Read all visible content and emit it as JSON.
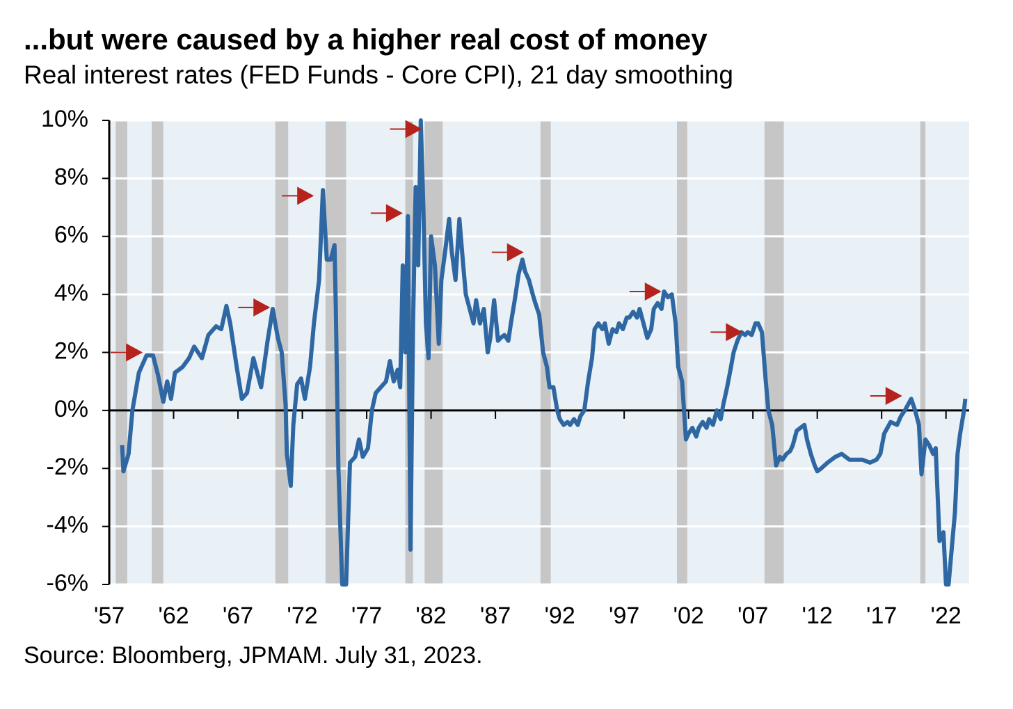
{
  "chart_data": {
    "type": "line",
    "title": "...but were caused by a higher real cost of money",
    "subtitle": "Real interest rates (FED Funds - Core CPI), 21 day smoothing",
    "source": "Source: Bloomberg, JPMAM. July 31, 2023.",
    "xlim": [
      1957,
      2023.8
    ],
    "ylim": [
      -6,
      10
    ],
    "yticks": [
      {
        "value": 10,
        "label": "10%"
      },
      {
        "value": 8,
        "label": "8%"
      },
      {
        "value": 6,
        "label": "6%"
      },
      {
        "value": 4,
        "label": "4%"
      },
      {
        "value": 2,
        "label": "2%"
      },
      {
        "value": 0,
        "label": "0%"
      },
      {
        "value": -2,
        "label": "-2%"
      },
      {
        "value": -4,
        "label": "-4%"
      },
      {
        "value": -6,
        "label": "-6%"
      }
    ],
    "xticks": [
      {
        "value": 1957,
        "label": "'57"
      },
      {
        "value": 1962,
        "label": "'62"
      },
      {
        "value": 1967,
        "label": "'67"
      },
      {
        "value": 1972,
        "label": "'72"
      },
      {
        "value": 1977,
        "label": "'77"
      },
      {
        "value": 1982,
        "label": "'82"
      },
      {
        "value": 1987,
        "label": "'87"
      },
      {
        "value": 1992,
        "label": "'92"
      },
      {
        "value": 1997,
        "label": "'97"
      },
      {
        "value": 2002,
        "label": "'02"
      },
      {
        "value": 2007,
        "label": "'07"
      },
      {
        "value": 2012,
        "label": "'12"
      },
      {
        "value": 2017,
        "label": "'17"
      },
      {
        "value": 2022,
        "label": "'22"
      }
    ],
    "grid": true,
    "recession_color": "#c6c6c6",
    "recessions": [
      [
        1957.5,
        1958.4
      ],
      [
        1960.3,
        1961.2
      ],
      [
        1969.9,
        1970.9
      ],
      [
        1973.8,
        1975.4
      ],
      [
        1980.0,
        1980.6
      ],
      [
        1981.5,
        1982.9
      ],
      [
        1990.5,
        1991.3
      ],
      [
        2001.1,
        2001.9
      ],
      [
        2007.9,
        2009.4
      ],
      [
        2020.0,
        2020.4
      ]
    ],
    "arrow_color": "#b5231c",
    "arrows": [
      {
        "x": 1959.6,
        "y": 2.0
      },
      {
        "x": 1969.5,
        "y": 3.55
      },
      {
        "x": 1972.9,
        "y": 7.4
      },
      {
        "x": 1979.8,
        "y": 6.8
      },
      {
        "x": 1981.3,
        "y": 9.7
      },
      {
        "x": 1989.2,
        "y": 5.45
      },
      {
        "x": 1999.9,
        "y": 4.1
      },
      {
        "x": 2006.2,
        "y": 2.7
      },
      {
        "x": 2018.6,
        "y": 0.5
      }
    ],
    "series": [
      {
        "color": "#2f67a3",
        "x": [
          1958.0,
          1958.1,
          1958.5,
          1958.8,
          1959.3,
          1959.9,
          1960.4,
          1960.8,
          1961.2,
          1961.5,
          1961.8,
          1962.1,
          1962.7,
          1963.2,
          1963.6,
          1964.2,
          1964.7,
          1965.3,
          1965.7,
          1966.1,
          1966.4,
          1966.9,
          1967.3,
          1967.7,
          1968.2,
          1968.8,
          1969.3,
          1969.7,
          1970.1,
          1970.4,
          1970.7,
          1970.8,
          1971.1,
          1971.3,
          1971.6,
          1971.9,
          1972.2,
          1972.6,
          1972.9,
          1973.3,
          1973.6,
          1973.9,
          1974.2,
          1974.5,
          1974.6,
          1974.8,
          1975.1,
          1975.4,
          1975.7,
          1976.1,
          1976.4,
          1976.7,
          1977.1,
          1977.4,
          1977.7,
          1978.1,
          1978.5,
          1978.8,
          1979.1,
          1979.4,
          1979.6,
          1979.8,
          1980.0,
          1980.2,
          1980.4,
          1980.6,
          1980.8,
          1981.0,
          1981.2,
          1981.4,
          1981.6,
          1981.8,
          1982.0,
          1982.3,
          1982.6,
          1982.8,
          1983.1,
          1983.4,
          1983.6,
          1983.9,
          1984.2,
          1984.5,
          1984.7,
          1985.0,
          1985.3,
          1985.5,
          1985.8,
          1986.1,
          1986.4,
          1986.6,
          1986.9,
          1987.2,
          1987.4,
          1987.7,
          1988.0,
          1988.2,
          1988.5,
          1988.8,
          1989.1,
          1989.3,
          1989.6,
          1989.9,
          1990.1,
          1990.4,
          1990.7,
          1991.0,
          1991.2,
          1991.5,
          1991.8,
          1992.0,
          1992.3,
          1992.6,
          1992.8,
          1993.1,
          1993.4,
          1993.6,
          1993.9,
          1994.2,
          1994.5,
          1994.7,
          1995.0,
          1995.3,
          1995.5,
          1995.8,
          1996.1,
          1996.4,
          1996.6,
          1996.9,
          1997.2,
          1997.4,
          1997.7,
          1998.0,
          1998.2,
          1998.5,
          1998.8,
          1999.1,
          1999.3,
          1999.6,
          1999.9,
          2000.1,
          2000.4,
          2000.7,
          2001.0,
          2001.2,
          2001.5,
          2001.8,
          2002.0,
          2002.3,
          2002.6,
          2002.8,
          2003.1,
          2003.4,
          2003.6,
          2003.9,
          2004.2,
          2004.5,
          2004.7,
          2005.0,
          2005.3,
          2005.5,
          2005.8,
          2006.1,
          2006.4,
          2006.6,
          2006.9,
          2007.2,
          2007.4,
          2007.7,
          2008.0,
          2008.2,
          2008.5,
          2008.8,
          2009.1,
          2009.3,
          2009.6,
          2009.9,
          2010.1,
          2010.4,
          2010.7,
          2011.0,
          2011.2,
          2011.5,
          2011.8,
          2012.0,
          2012.3,
          2012.8,
          2013.4,
          2013.9,
          2014.5,
          2015.0,
          2015.5,
          2016.1,
          2016.6,
          2016.9,
          2017.2,
          2017.7,
          2018.2,
          2018.5,
          2018.8,
          2019.3,
          2019.6,
          2019.9,
          2020.1,
          2020.4,
          2020.7,
          2021.0,
          2021.2,
          2021.5,
          2021.8,
          2022.0,
          2022.2,
          2022.5,
          2022.7,
          2022.9,
          2023.1,
          2023.4,
          2023.5
        ],
        "values": [
          -1.2,
          -2.1,
          -1.5,
          0,
          1.3,
          1.9,
          1.9,
          1.2,
          0.3,
          1.0,
          0.4,
          1.3,
          1.5,
          1.8,
          2.2,
          1.8,
          2.6,
          2.9,
          2.8,
          3.6,
          3.0,
          1.5,
          0.4,
          0.6,
          1.8,
          0.8,
          2.4,
          3.5,
          2.5,
          2.0,
          0.2,
          -1.5,
          -2.6,
          -0.5,
          0.9,
          1.1,
          0.4,
          1.5,
          3.0,
          4.5,
          7.6,
          5.2,
          5.2,
          5.7,
          3.5,
          -2,
          -6,
          -6,
          -1.8,
          -1.6,
          -1.0,
          -1.6,
          -1.3,
          0,
          0.6,
          0.8,
          1.0,
          1.7,
          1.0,
          1.4,
          0.8,
          5.0,
          2,
          6.7,
          -4.8,
          3,
          7.7,
          5,
          10,
          7,
          3,
          1.8,
          6,
          5,
          2.3,
          4.5,
          5.5,
          6.6,
          5.5,
          4.5,
          6.6,
          5,
          4,
          3.5,
          3,
          3.8,
          3,
          3.5,
          2,
          2.5,
          3.8,
          2.4,
          2.5,
          2.6,
          2.4,
          3,
          3.8,
          4.7,
          5.2,
          4.8,
          4.5,
          4,
          3.7,
          3.3,
          2,
          1.5,
          0.8,
          0.8,
          0,
          -0.3,
          -0.5,
          -0.4,
          -0.5,
          -0.3,
          -0.5,
          -0.2,
          0,
          1.0,
          1.8,
          2.8,
          3.0,
          2.8,
          3,
          2.3,
          2.8,
          2.7,
          3.0,
          2.8,
          3.2,
          3.2,
          3.4,
          3.2,
          3.5,
          3.0,
          2.5,
          2.8,
          3.5,
          3.7,
          3.5,
          4.1,
          3.9,
          4.0,
          3.0,
          1.5,
          1.0,
          -1.0,
          -0.8,
          -0.6,
          -0.9,
          -0.6,
          -0.4,
          -0.6,
          -0.3,
          -0.5,
          0,
          -0.3,
          0.2,
          0.8,
          1.5,
          2,
          2.4,
          2.7,
          2.6,
          2.7,
          2.6,
          3.0,
          3.0,
          2.7,
          1.0,
          0,
          -0.5,
          -1.9,
          -1.6,
          -1.7,
          -1.5,
          -1.4,
          -1.2,
          -0.7,
          -0.6,
          -0.5,
          -1.0,
          -1.5,
          -1.9,
          -2.1,
          -2.0,
          -1.8,
          -1.6,
          -1.5,
          -1.7,
          -1.7,
          -1.7,
          -1.8,
          -1.7,
          -1.5,
          -0.8,
          -0.4,
          -0.5,
          -0.2,
          0,
          0.4,
          0,
          -0.5,
          -2.2,
          -1.0,
          -1.2,
          -1.5,
          -1.3,
          -4.5,
          -4.2,
          -6,
          -6,
          -4.5,
          -3.5,
          -1.5,
          -0.8,
          0,
          0.4
        ]
      }
    ]
  }
}
